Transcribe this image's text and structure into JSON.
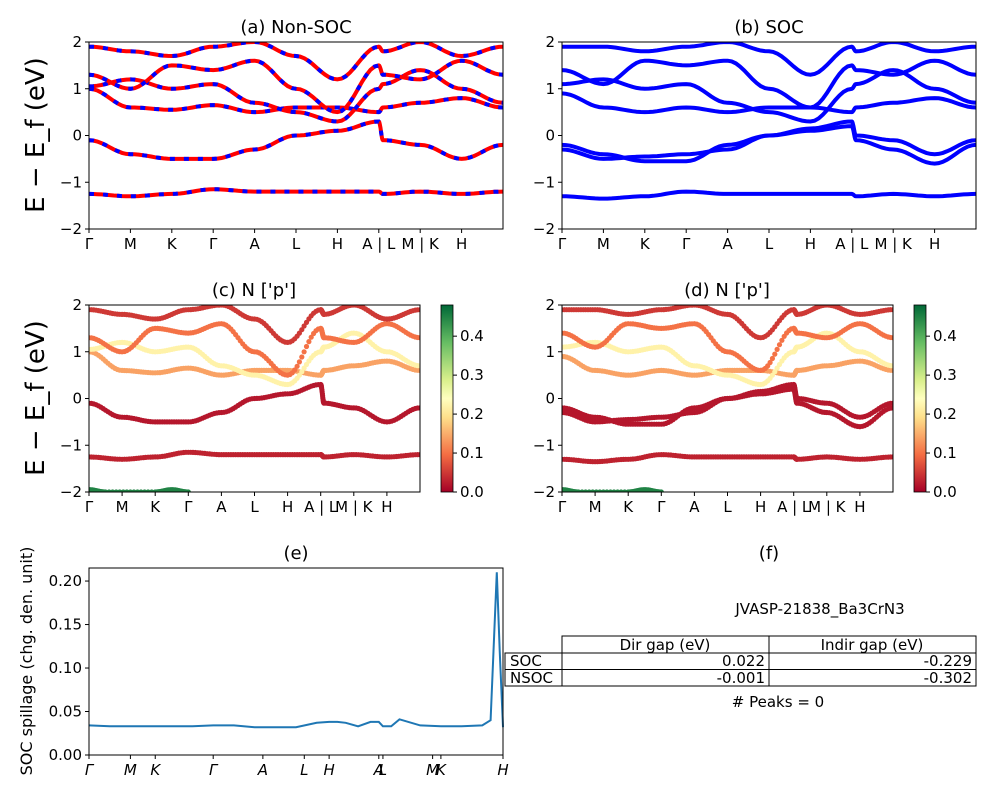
{
  "colors": {
    "nonsoc_a": "#ff0000",
    "nonsoc_b": "#0000ff",
    "soc": "#0000ff",
    "spill": "#1f77b4"
  },
  "band_ylabel": "E − E_f (eV)",
  "band_ylim": [
    -2,
    2
  ],
  "band_yticks": [
    "2",
    "1",
    "0",
    "−1",
    "−2"
  ],
  "kpath_labels": [
    "Γ",
    "M",
    "K",
    "Γ",
    "A",
    "L",
    "H",
    "A | L",
    "M | K",
    "H"
  ],
  "colorbar_ticks": [
    "0.4",
    "0.3",
    "0.2",
    "0.1",
    "0.0"
  ],
  "colorbar_range": [
    0,
    0.48
  ],
  "colorbar_cmap": "RdYlGn",
  "panels": {
    "a": {
      "title": "(a) Non-SOC"
    },
    "b": {
      "title": "(b) SOC"
    },
    "c": {
      "title": "(c)  N ['p']"
    },
    "d": {
      "title": "(d) N ['p']"
    },
    "e": {
      "title": "(e)",
      "ylabel": "SOC spillage (chg. den. unit)",
      "yticks": [
        "0.20",
        "0.15",
        "0.10",
        "0.05",
        "0.00"
      ],
      "xlabels": [
        "Γ",
        "M",
        "K",
        "Γ",
        "A",
        "L",
        "H",
        "A",
        "L",
        "M",
        "K",
        "H"
      ]
    },
    "f": {
      "title": "(f)",
      "name": "JVASP-21838_Ba3CrN3",
      "peaks": "# Peaks = 0",
      "table": {
        "header": [
          "",
          "Dir gap (eV)",
          "Indir gap (eV)"
        ],
        "rows": [
          [
            "SOC",
            "0.022",
            "-0.229"
          ],
          [
            "NSOC",
            "-0.001",
            "-0.302"
          ]
        ]
      }
    }
  },
  "chart_data": [
    {
      "type": "line",
      "title": "(a) Non-SOC",
      "ylabel": "E − E_f (eV)",
      "ylim": [
        -2,
        2
      ],
      "x_range": [
        0,
        10
      ],
      "x_ticks": [
        "Γ",
        "M",
        "K",
        "Γ",
        "A",
        "L",
        "H",
        "A | L",
        "M | K",
        "H"
      ],
      "series": [
        {
          "x": [
            0,
            1,
            2,
            3,
            4,
            5,
            6,
            7,
            7.1,
            8,
            9,
            10
          ],
          "values": [
            -0.1,
            -0.4,
            -0.5,
            -0.5,
            -0.3,
            0,
            0.1,
            0.3,
            -0.1,
            -0.2,
            -0.5,
            -0.2
          ]
        },
        {
          "x": [
            0,
            1,
            2,
            3,
            4,
            5,
            6,
            7,
            7.1,
            8,
            9,
            10
          ],
          "values": [
            -1.25,
            -1.3,
            -1.25,
            -1.15,
            -1.2,
            -1.2,
            -1.2,
            -1.2,
            -1.25,
            -1.2,
            -1.25,
            -1.2
          ]
        },
        {
          "x": [
            0,
            1,
            2,
            3,
            4,
            5,
            6,
            7,
            7.1,
            8,
            9,
            10
          ],
          "values": [
            1.0,
            0.6,
            0.55,
            0.65,
            0.5,
            0.6,
            0.6,
            0.5,
            0.6,
            0.7,
            0.8,
            0.6
          ]
        },
        {
          "x": [
            0,
            1,
            2,
            3,
            4,
            5,
            6,
            7,
            7.1,
            8,
            9,
            10
          ],
          "values": [
            1.05,
            1.2,
            1.0,
            1.1,
            0.7,
            0.5,
            0.3,
            1.0,
            1.1,
            1.4,
            1.0,
            0.7
          ]
        },
        {
          "x": [
            0,
            1,
            2,
            3,
            4,
            5,
            6,
            7,
            7.1,
            8,
            9,
            10
          ],
          "values": [
            1.3,
            1.0,
            1.5,
            1.4,
            1.6,
            1.0,
            0.5,
            1.5,
            1.3,
            1.2,
            1.6,
            1.3
          ]
        },
        {
          "x": [
            0,
            1,
            2,
            3,
            4,
            5,
            6,
            7,
            7.1,
            8,
            9,
            10
          ],
          "values": [
            1.9,
            1.8,
            1.7,
            1.9,
            2.0,
            1.7,
            1.2,
            1.9,
            1.8,
            2.0,
            1.7,
            1.9
          ]
        }
      ]
    },
    {
      "type": "line",
      "title": "(b) SOC",
      "ylim": [
        -2,
        2
      ],
      "x_range": [
        0,
        10
      ],
      "x_ticks": [
        "Γ",
        "M",
        "K",
        "Γ",
        "A",
        "L",
        "H",
        "A | L",
        "M | K",
        "H"
      ],
      "series": [
        {
          "x": [
            0,
            1,
            2,
            3,
            4,
            5,
            6,
            7,
            7.1,
            8,
            9,
            10
          ],
          "values": [
            -0.2,
            -0.4,
            -0.55,
            -0.55,
            -0.2,
            0,
            0.1,
            0.2,
            -0.1,
            -0.3,
            -0.6,
            -0.2
          ]
        },
        {
          "x": [
            0,
            1,
            2,
            3,
            4,
            5,
            6,
            7,
            7.1,
            8,
            9,
            10
          ],
          "values": [
            -0.3,
            -0.5,
            -0.45,
            -0.4,
            -0.3,
            0,
            0.15,
            0.3,
            0.0,
            -0.1,
            -0.4,
            -0.1
          ]
        },
        {
          "x": [
            0,
            1,
            2,
            3,
            4,
            5,
            6,
            7,
            7.1,
            8,
            9,
            10
          ],
          "values": [
            -1.3,
            -1.35,
            -1.3,
            -1.2,
            -1.25,
            -1.25,
            -1.25,
            -1.25,
            -1.3,
            -1.25,
            -1.3,
            -1.25
          ]
        },
        {
          "x": [
            0,
            1,
            2,
            3,
            4,
            5,
            6,
            7,
            7.1,
            8,
            9,
            10
          ],
          "values": [
            0.9,
            0.6,
            0.5,
            0.6,
            0.5,
            0.6,
            0.6,
            0.5,
            0.6,
            0.7,
            0.8,
            0.6
          ]
        },
        {
          "x": [
            0,
            1,
            2,
            3,
            4,
            5,
            6,
            7,
            7.1,
            8,
            9,
            10
          ],
          "values": [
            1.1,
            1.2,
            1.0,
            1.1,
            0.7,
            0.5,
            0.3,
            1.0,
            1.1,
            1.4,
            1.0,
            0.7
          ]
        },
        {
          "x": [
            0,
            1,
            2,
            3,
            4,
            5,
            6,
            7,
            7.1,
            8,
            9,
            10
          ],
          "values": [
            1.4,
            1.1,
            1.6,
            1.5,
            1.6,
            1.0,
            0.6,
            1.5,
            1.4,
            1.3,
            1.6,
            1.3
          ]
        },
        {
          "x": [
            0,
            1,
            2,
            3,
            4,
            5,
            6,
            7,
            7.1,
            8,
            9,
            10
          ],
          "values": [
            1.9,
            1.9,
            1.8,
            1.9,
            2.0,
            1.8,
            1.3,
            1.9,
            1.8,
            2.0,
            1.8,
            1.9
          ]
        }
      ]
    },
    {
      "type": "scatter",
      "title": "(c)  N ['p']",
      "ylim": [
        -2,
        2
      ],
      "x_range": [
        0,
        10
      ],
      "x_ticks": [
        "Γ",
        "M",
        "K",
        "Γ",
        "A",
        "L",
        "H",
        "A | L",
        "M | K",
        "H"
      ],
      "series": [
        {
          "x": [
            0,
            1,
            2,
            3,
            4,
            5,
            6,
            7,
            7.1,
            8,
            9,
            10
          ],
          "values": [
            -0.1,
            -0.4,
            -0.5,
            -0.5,
            -0.3,
            0,
            0.1,
            0.3,
            -0.1,
            -0.2,
            -0.5,
            -0.2
          ],
          "weight": 0.02
        },
        {
          "x": [
            0,
            1,
            2,
            3,
            4,
            5,
            6,
            7,
            7.1,
            8,
            9,
            10
          ],
          "values": [
            -1.25,
            -1.3,
            -1.25,
            -1.15,
            -1.2,
            -1.2,
            -1.2,
            -1.2,
            -1.25,
            -1.2,
            -1.25,
            -1.2
          ],
          "weight": 0.03
        },
        {
          "x": [
            0,
            1,
            2,
            3,
            4,
            5,
            6,
            7,
            7.1,
            8,
            9,
            10
          ],
          "values": [
            1.0,
            0.6,
            0.55,
            0.65,
            0.5,
            0.6,
            0.6,
            0.5,
            0.6,
            0.7,
            0.8,
            0.6
          ],
          "weight": 0.14
        },
        {
          "x": [
            0,
            1,
            2,
            3,
            4,
            5,
            6,
            7,
            7.1,
            8,
            9,
            10
          ],
          "values": [
            1.05,
            1.2,
            1.0,
            1.1,
            0.7,
            0.5,
            0.3,
            1.0,
            1.1,
            1.4,
            1.0,
            0.7
          ],
          "weight": 0.22
        },
        {
          "x": [
            0,
            1,
            2,
            3,
            4,
            5,
            6,
            7,
            7.1,
            8,
            9,
            10
          ],
          "values": [
            1.3,
            1.0,
            1.5,
            1.4,
            1.6,
            1.0,
            0.5,
            1.5,
            1.3,
            1.2,
            1.6,
            1.3
          ],
          "weight": 0.1
        },
        {
          "x": [
            0,
            1,
            2,
            3,
            4,
            5,
            6,
            7,
            7.1,
            8,
            9,
            10
          ],
          "values": [
            1.9,
            1.8,
            1.7,
            1.9,
            2.0,
            1.7,
            1.2,
            1.9,
            1.8,
            2.0,
            1.7,
            1.9
          ],
          "weight": 0.05
        },
        {
          "x": [
            0,
            0.5,
            2.0,
            2.5,
            3.0
          ],
          "values": [
            -1.95,
            -2.0,
            -2.0,
            -1.95,
            -2.0
          ],
          "weight": 0.45
        }
      ]
    },
    {
      "type": "scatter",
      "title": "(d) N ['p']",
      "ylim": [
        -2,
        2
      ],
      "x_range": [
        0,
        10
      ],
      "x_ticks": [
        "Γ",
        "M",
        "K",
        "Γ",
        "A",
        "L",
        "H",
        "A | L",
        "M | K",
        "H"
      ],
      "series": [
        {
          "x": [
            0,
            1,
            2,
            3,
            4,
            5,
            6,
            7,
            7.1,
            8,
            9,
            10
          ],
          "values": [
            -0.2,
            -0.4,
            -0.55,
            -0.55,
            -0.2,
            0,
            0.1,
            0.2,
            -0.1,
            -0.3,
            -0.6,
            -0.2
          ],
          "weight": 0.02
        },
        {
          "x": [
            0,
            1,
            2,
            3,
            4,
            5,
            6,
            7,
            7.1,
            8,
            9,
            10
          ],
          "values": [
            -0.3,
            -0.5,
            -0.45,
            -0.4,
            -0.3,
            0,
            0.15,
            0.3,
            0.0,
            -0.1,
            -0.4,
            -0.1
          ],
          "weight": 0.02
        },
        {
          "x": [
            0,
            1,
            2,
            3,
            4,
            5,
            6,
            7,
            7.1,
            8,
            9,
            10
          ],
          "values": [
            -1.3,
            -1.35,
            -1.3,
            -1.2,
            -1.25,
            -1.25,
            -1.25,
            -1.25,
            -1.3,
            -1.25,
            -1.3,
            -1.25
          ],
          "weight": 0.03
        },
        {
          "x": [
            0,
            1,
            2,
            3,
            4,
            5,
            6,
            7,
            7.1,
            8,
            9,
            10
          ],
          "values": [
            0.9,
            0.6,
            0.5,
            0.6,
            0.5,
            0.6,
            0.6,
            0.5,
            0.6,
            0.7,
            0.8,
            0.6
          ],
          "weight": 0.14
        },
        {
          "x": [
            0,
            1,
            2,
            3,
            4,
            5,
            6,
            7,
            7.1,
            8,
            9,
            10
          ],
          "values": [
            1.1,
            1.2,
            1.0,
            1.1,
            0.7,
            0.5,
            0.3,
            1.0,
            1.1,
            1.4,
            1.0,
            0.7
          ],
          "weight": 0.22
        },
        {
          "x": [
            0,
            1,
            2,
            3,
            4,
            5,
            6,
            7,
            7.1,
            8,
            9,
            10
          ],
          "values": [
            1.4,
            1.1,
            1.6,
            1.5,
            1.6,
            1.0,
            0.6,
            1.5,
            1.4,
            1.3,
            1.6,
            1.3
          ],
          "weight": 0.1
        },
        {
          "x": [
            0,
            1,
            2,
            3,
            4,
            5,
            6,
            7,
            7.1,
            8,
            9,
            10
          ],
          "values": [
            1.9,
            1.9,
            1.8,
            1.9,
            2.0,
            1.8,
            1.3,
            1.9,
            1.8,
            2.0,
            1.8,
            1.9
          ],
          "weight": 0.05
        },
        {
          "x": [
            0,
            0.5,
            2.0,
            2.5,
            3.0
          ],
          "values": [
            -1.95,
            -2.0,
            -2.0,
            -1.95,
            -2.0
          ],
          "weight": 0.45
        }
      ]
    },
    {
      "type": "line",
      "title": "(e)",
      "ylabel": "SOC spillage (chg. den. unit)",
      "ylim": [
        0,
        0.215
      ],
      "x_ticks": [
        "Γ",
        "M",
        "K",
        "Γ",
        "A",
        "L",
        "H",
        "A",
        "L",
        "M",
        "K",
        "H"
      ],
      "x": [
        0,
        0.5,
        1,
        1.5,
        2,
        2.5,
        3,
        3.5,
        4,
        4.5,
        5,
        5.5,
        5.8,
        6,
        6.2,
        6.5,
        6.8,
        7,
        7.1,
        7.3,
        7.5,
        8,
        8.5,
        9,
        9.5,
        9.7,
        9.85,
        9.92,
        10
      ],
      "values": [
        0.034,
        0.033,
        0.033,
        0.033,
        0.033,
        0.033,
        0.034,
        0.034,
        0.032,
        0.032,
        0.032,
        0.037,
        0.038,
        0.038,
        0.037,
        0.033,
        0.038,
        0.038,
        0.033,
        0.033,
        0.041,
        0.034,
        0.033,
        0.033,
        0.034,
        0.04,
        0.21,
        0.12,
        0.032
      ]
    }
  ]
}
